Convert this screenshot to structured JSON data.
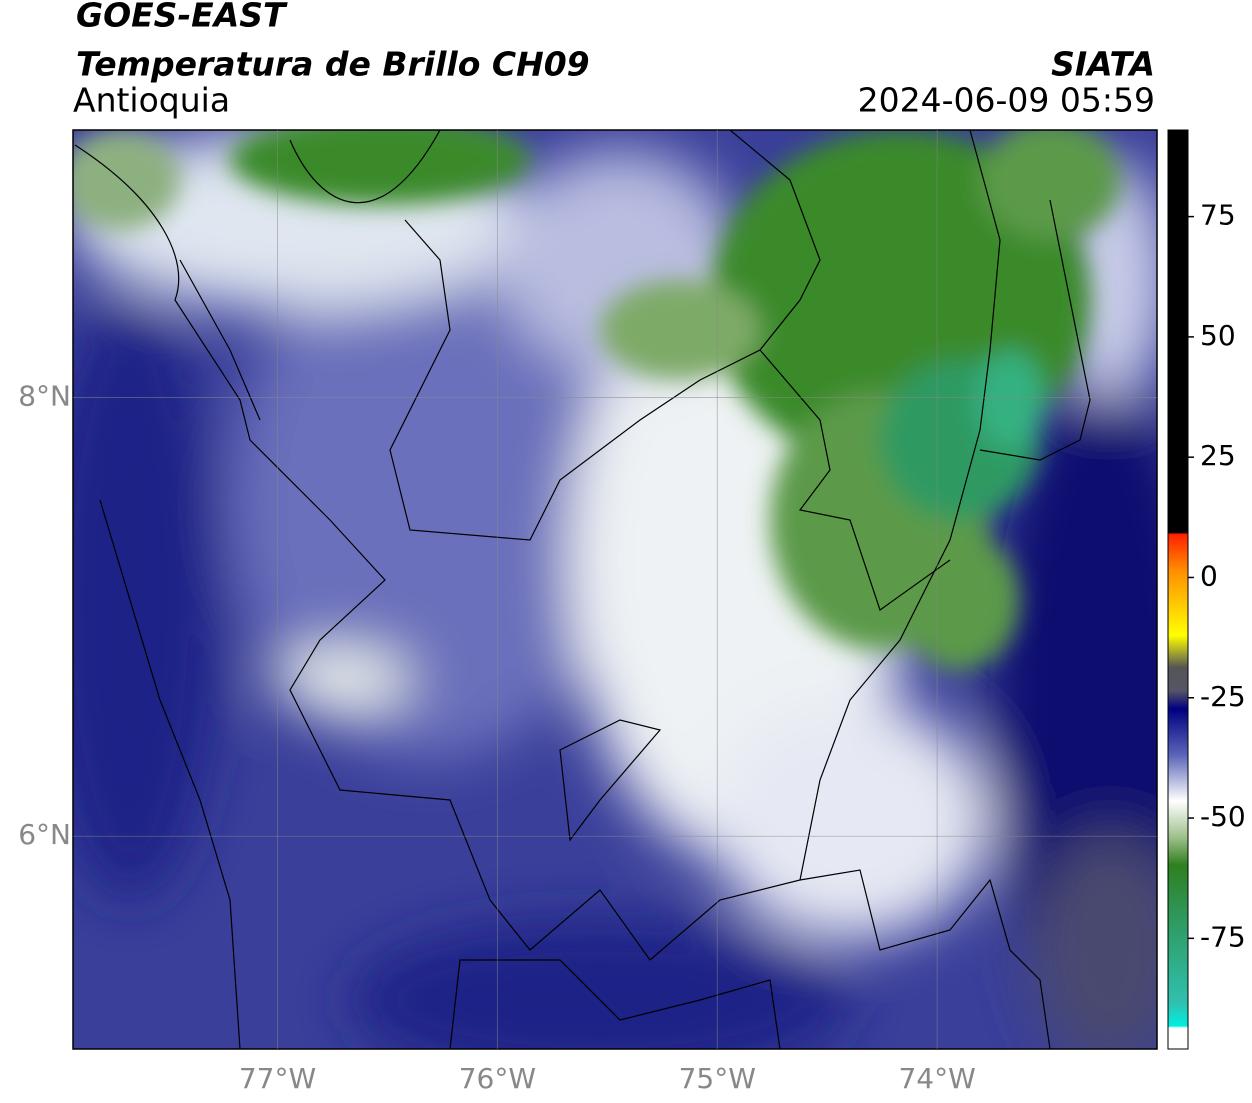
{
  "header": {
    "title": "GOES-EAST",
    "subtitle": "Temperatura de Brillo CH09",
    "region": "Antioquia",
    "source": "SIATA",
    "datetime": "2024-06-09 05:59"
  },
  "map": {
    "xlim": [
      -77.93,
      -73.0
    ],
    "ylim": [
      5.03,
      9.22
    ],
    "xticks": [
      {
        "value": -77,
        "label": "77°W"
      },
      {
        "value": -76,
        "label": "76°W"
      },
      {
        "value": -75,
        "label": "75°W"
      },
      {
        "value": -74,
        "label": "74°W"
      }
    ],
    "yticks": [
      {
        "value": 8,
        "label": "8°N"
      },
      {
        "value": 6,
        "label": "6°N"
      }
    ],
    "grid": true
  },
  "colorbar": {
    "lim": [
      -98,
      93
    ],
    "ticks": [
      75,
      50,
      25,
      0,
      -25,
      -50,
      -75
    ]
  }
}
